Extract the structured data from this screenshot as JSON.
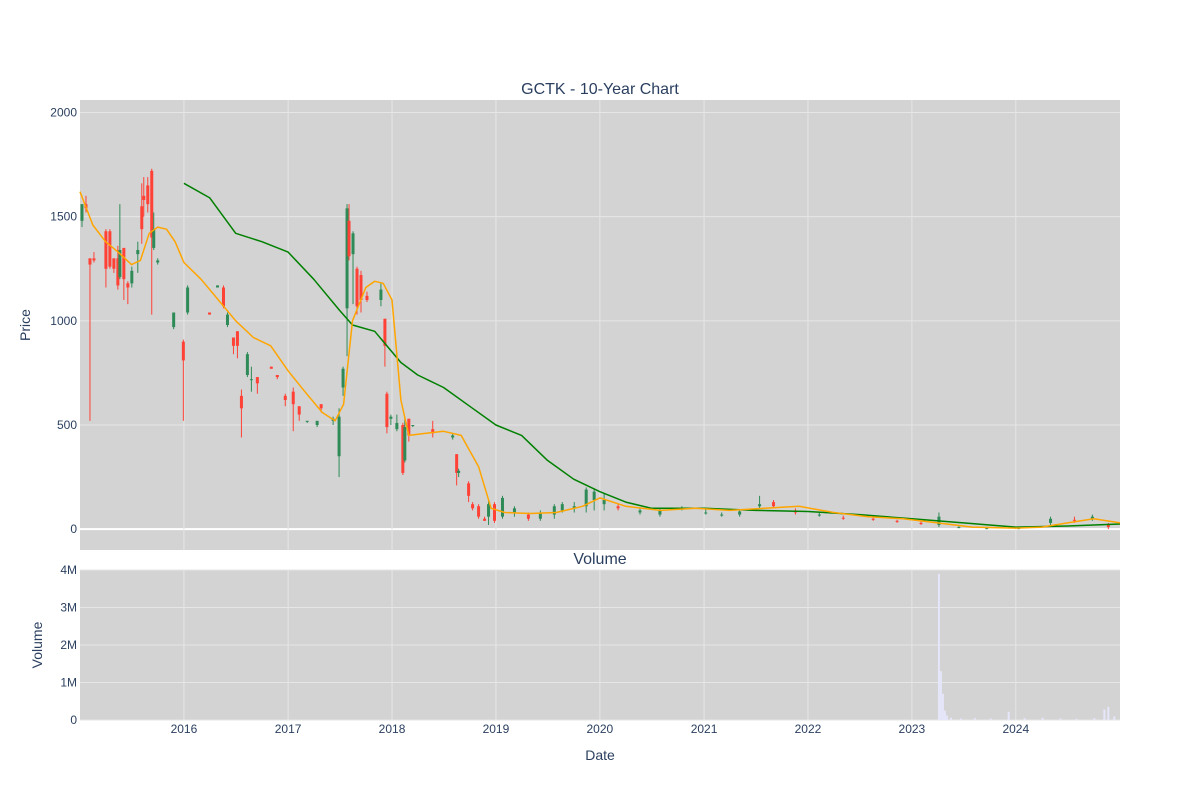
{
  "chart_data": {
    "type": "candlestick",
    "title": "GCTK - 10-Year Chart",
    "price_panel": {
      "ylabel": "Price",
      "ylim": [
        -100,
        2060
      ],
      "yticks": [
        0,
        500,
        1000,
        1500,
        2000
      ],
      "ytick_labels": [
        "0",
        "500",
        "1000",
        "1500",
        "2000"
      ],
      "grid": true,
      "background": "#d3d3d3",
      "colors": {
        "up": "#2e8b57",
        "down": "#ff4136",
        "ma_short": "#ffa500",
        "ma_long": "#008000",
        "grid": "#e6e6e6"
      },
      "candles": [
        [
          "2015-01-08",
          1480,
          1560,
          1450,
          1560
        ],
        [
          "2015-01-22",
          1560,
          1600,
          1520,
          1540
        ],
        [
          "2015-02-05",
          1300,
          1300,
          520,
          1270
        ],
        [
          "2015-02-19",
          1300,
          1330,
          1280,
          1290
        ],
        [
          "2015-04-02",
          1430,
          1440,
          1160,
          1250
        ],
        [
          "2015-04-16",
          1430,
          1440,
          1250,
          1260
        ],
        [
          "2015-04-30",
          1300,
          1300,
          1230,
          1250
        ],
        [
          "2015-05-14",
          1300,
          1360,
          1150,
          1170
        ],
        [
          "2015-05-21",
          1210,
          1560,
          1200,
          1340
        ],
        [
          "2015-06-04",
          1350,
          1350,
          1100,
          1200
        ],
        [
          "2015-06-18",
          1180,
          1190,
          1080,
          1160
        ],
        [
          "2015-07-02",
          1180,
          1260,
          1160,
          1240
        ],
        [
          "2015-07-23",
          1320,
          1380,
          1230,
          1340
        ],
        [
          "2015-08-06",
          1550,
          1660,
          1370,
          1440
        ],
        [
          "2015-08-13",
          1600,
          1690,
          1500,
          1580
        ],
        [
          "2015-08-27",
          1650,
          1690,
          1520,
          1560
        ],
        [
          "2015-09-10",
          1720,
          1730,
          1030,
          1400
        ],
        [
          "2015-09-17",
          1350,
          1520,
          1340,
          1440
        ],
        [
          "2015-10-01",
          1280,
          1300,
          1270,
          1290
        ],
        [
          "2015-11-26",
          970,
          1040,
          960,
          1040
        ],
        [
          "2015-12-30",
          900,
          910,
          520,
          810
        ],
        [
          "2016-01-14",
          1040,
          1170,
          1030,
          1160
        ],
        [
          "2016-03-31",
          1040,
          1040,
          1030,
          1030
        ],
        [
          "2016-04-28",
          1160,
          1170,
          1160,
          1170
        ],
        [
          "2016-05-19",
          1160,
          1170,
          1060,
          1070
        ],
        [
          "2016-06-02",
          980,
          1040,
          970,
          1030
        ],
        [
          "2016-06-23",
          920,
          920,
          840,
          880
        ],
        [
          "2016-07-07",
          950,
          950,
          820,
          880
        ],
        [
          "2016-07-21",
          640,
          670,
          440,
          580
        ],
        [
          "2016-08-11",
          740,
          850,
          730,
          840
        ],
        [
          "2016-08-25",
          720,
          780,
          660,
          720
        ],
        [
          "2016-09-15",
          730,
          730,
          650,
          700
        ],
        [
          "2016-11-03",
          780,
          780,
          770,
          770
        ],
        [
          "2016-11-24",
          740,
          740,
          720,
          730
        ],
        [
          "2016-12-22",
          640,
          650,
          590,
          620
        ],
        [
          "2017-01-19",
          660,
          680,
          470,
          600
        ],
        [
          "2017-02-09",
          590,
          590,
          520,
          550
        ],
        [
          "2017-03-09",
          520,
          520,
          510,
          520
        ],
        [
          "2017-04-13",
          500,
          510,
          490,
          520
        ],
        [
          "2017-04-27",
          600,
          600,
          560,
          580
        ],
        [
          "2017-06-08",
          520,
          540,
          500,
          530
        ],
        [
          "2017-06-29",
          350,
          580,
          250,
          540
        ],
        [
          "2017-07-13",
          680,
          780,
          640,
          770
        ],
        [
          "2017-07-27",
          1060,
          1560,
          830,
          1540
        ],
        [
          "2017-08-03",
          1480,
          1560,
          1290,
          1310
        ],
        [
          "2017-08-17",
          1320,
          1430,
          1080,
          1420
        ],
        [
          "2017-08-31",
          1250,
          1260,
          1030,
          1070
        ],
        [
          "2017-09-14",
          1220,
          1240,
          1040,
          1100
        ],
        [
          "2017-10-05",
          1120,
          1140,
          1090,
          1100
        ],
        [
          "2017-11-23",
          1100,
          1180,
          1070,
          1150
        ],
        [
          "2017-12-07",
          1010,
          1010,
          780,
          880
        ],
        [
          "2017-12-14",
          650,
          660,
          460,
          490
        ],
        [
          "2017-12-28",
          530,
          550,
          500,
          540
        ],
        [
          "2018-01-18",
          480,
          550,
          470,
          510
        ],
        [
          "2018-02-08",
          500,
          510,
          260,
          270
        ],
        [
          "2018-02-15",
          330,
          530,
          320,
          490
        ],
        [
          "2018-03-01",
          530,
          530,
          420,
          450
        ],
        [
          "2018-03-15",
          500,
          500,
          490,
          500
        ],
        [
          "2018-05-24",
          480,
          520,
          440,
          460
        ],
        [
          "2018-08-02",
          440,
          460,
          430,
          450
        ],
        [
          "2018-08-16",
          360,
          360,
          210,
          270
        ],
        [
          "2018-08-23",
          270,
          290,
          250,
          280
        ],
        [
          "2018-09-27",
          220,
          230,
          130,
          160
        ],
        [
          "2018-10-11",
          120,
          130,
          90,
          100
        ],
        [
          "2018-11-01",
          110,
          120,
          50,
          60
        ],
        [
          "2018-11-22",
          50,
          60,
          40,
          40
        ],
        [
          "2018-12-06",
          60,
          140,
          20,
          120
        ],
        [
          "2018-12-27",
          120,
          130,
          30,
          40
        ],
        [
          "2019-01-24",
          60,
          160,
          50,
          150
        ],
        [
          "2019-03-07",
          80,
          110,
          60,
          100
        ],
        [
          "2019-04-25",
          70,
          80,
          40,
          50
        ],
        [
          "2019-06-06",
          50,
          90,
          40,
          80
        ],
        [
          "2019-07-25",
          70,
          120,
          50,
          110
        ],
        [
          "2019-08-22",
          90,
          130,
          80,
          120
        ],
        [
          "2019-10-03",
          100,
          130,
          80,
          110
        ],
        [
          "2019-11-14",
          110,
          200,
          80,
          190
        ],
        [
          "2019-12-12",
          140,
          190,
          90,
          180
        ],
        [
          "2020-01-16",
          120,
          170,
          90,
          140
        ],
        [
          "2020-03-05",
          110,
          120,
          90,
          100
        ],
        [
          "2020-05-21",
          80,
          100,
          70,
          90
        ],
        [
          "2020-07-30",
          70,
          100,
          60,
          90
        ],
        [
          "2020-10-15",
          100,
          110,
          90,
          100
        ],
        [
          "2021-01-07",
          80,
          100,
          70,
          80
        ],
        [
          "2021-03-04",
          70,
          80,
          60,
          70
        ],
        [
          "2021-05-06",
          70,
          90,
          60,
          85
        ],
        [
          "2021-07-15",
          110,
          160,
          100,
          120
        ],
        [
          "2021-09-02",
          130,
          140,
          100,
          110
        ],
        [
          "2021-11-18",
          90,
          100,
          70,
          80
        ],
        [
          "2022-02-10",
          70,
          80,
          60,
          70
        ],
        [
          "2022-05-05",
          55,
          65,
          45,
          50
        ],
        [
          "2022-08-18",
          50,
          55,
          40,
          45
        ],
        [
          "2022-11-10",
          40,
          45,
          30,
          35
        ],
        [
          "2023-02-02",
          30,
          40,
          20,
          25
        ],
        [
          "2023-04-06",
          20,
          80,
          10,
          60
        ],
        [
          "2023-06-15",
          10,
          15,
          5,
          10
        ],
        [
          "2023-09-21",
          5,
          10,
          0,
          5
        ],
        [
          "2024-01-11",
          5,
          10,
          0,
          5
        ],
        [
          "2024-05-02",
          30,
          60,
          20,
          50
        ],
        [
          "2024-07-25",
          45,
          60,
          30,
          40
        ],
        [
          "2024-09-26",
          50,
          70,
          40,
          60
        ],
        [
          "2024-11-21",
          20,
          30,
          0,
          10
        ]
      ],
      "ma_short": {
        "x": [
          "2015-01-01",
          "2015-02-15",
          "2015-04-01",
          "2015-05-15",
          "2015-07-01",
          "2015-08-01",
          "2015-09-01",
          "2015-10-01",
          "2015-11-01",
          "2015-12-01",
          "2016-01-01",
          "2016-03-01",
          "2016-05-01",
          "2016-07-01",
          "2016-09-01",
          "2016-11-01",
          "2017-01-01",
          "2017-03-01",
          "2017-05-01",
          "2017-06-15",
          "2017-07-15",
          "2017-08-15",
          "2017-10-01",
          "2017-11-01",
          "2017-12-01",
          "2018-01-01",
          "2018-02-01",
          "2018-03-01",
          "2018-05-01",
          "2018-07-01",
          "2018-09-01",
          "2018-11-01",
          "2018-12-15",
          "2019-02-01",
          "2019-05-01",
          "2019-08-01",
          "2019-11-01",
          "2020-01-01",
          "2020-04-01",
          "2020-08-01",
          "2020-12-01",
          "2021-04-01",
          "2021-08-01",
          "2021-12-01",
          "2022-04-01",
          "2022-08-01",
          "2022-12-01",
          "2023-04-01",
          "2023-08-01",
          "2024-01-01",
          "2024-04-01",
          "2024-07-01",
          "2024-10-01",
          "2025-01-01"
        ],
        "y": [
          1620,
          1460,
          1380,
          1330,
          1270,
          1290,
          1420,
          1450,
          1440,
          1380,
          1280,
          1200,
          1100,
          1000,
          920,
          880,
          760,
          660,
          560,
          520,
          600,
          1000,
          1160,
          1190,
          1180,
          1100,
          620,
          450,
          460,
          470,
          450,
          300,
          100,
          80,
          75,
          80,
          110,
          150,
          110,
          90,
          100,
          90,
          100,
          110,
          80,
          60,
          50,
          30,
          10,
          5,
          10,
          30,
          50,
          30
        ]
      },
      "ma_long": {
        "x": [
          "2016-01-01",
          "2016-04-01",
          "2016-07-01",
          "2016-10-01",
          "2017-01-01",
          "2017-04-01",
          "2017-07-01",
          "2017-08-15",
          "2017-11-01",
          "2018-02-01",
          "2018-04-01",
          "2018-07-01",
          "2018-10-01",
          "2019-01-01",
          "2019-04-01",
          "2019-07-01",
          "2019-10-01",
          "2020-01-01",
          "2020-04-01",
          "2020-07-01",
          "2021-01-01",
          "2021-07-01",
          "2022-01-01",
          "2022-07-01",
          "2023-01-01",
          "2023-07-01",
          "2024-01-01",
          "2024-07-01",
          "2025-01-01"
        ],
        "y": [
          1660,
          1590,
          1420,
          1380,
          1330,
          1200,
          1050,
          980,
          950,
          800,
          740,
          680,
          590,
          500,
          450,
          330,
          240,
          180,
          130,
          100,
          100,
          90,
          85,
          70,
          50,
          30,
          10,
          15,
          25
        ]
      }
    },
    "volume_panel": {
      "title": "Volume",
      "ylabel": "Volume",
      "ylim": [
        0,
        4000000
      ],
      "yticks": [
        0,
        1000000,
        2000000,
        3000000,
        4000000
      ],
      "ytick_labels": [
        "0",
        "1M",
        "2M",
        "3M",
        "4M"
      ],
      "bar_color": "#e6e6fa",
      "bars": [
        [
          "2023-04-06",
          3900000
        ],
        [
          "2023-04-13",
          1300000
        ],
        [
          "2023-04-20",
          700000
        ],
        [
          "2023-04-27",
          250000
        ],
        [
          "2023-05-04",
          120000
        ],
        [
          "2023-05-18",
          60000
        ],
        [
          "2023-06-22",
          40000
        ],
        [
          "2023-08-10",
          50000
        ],
        [
          "2023-10-05",
          40000
        ],
        [
          "2023-12-07",
          220000
        ],
        [
          "2024-02-01",
          50000
        ],
        [
          "2024-04-04",
          60000
        ],
        [
          "2024-06-06",
          40000
        ],
        [
          "2024-08-01",
          30000
        ],
        [
          "2024-10-03",
          50000
        ],
        [
          "2024-11-07",
          280000
        ],
        [
          "2024-11-21",
          350000
        ],
        [
          "2024-12-12",
          100000
        ]
      ]
    },
    "xaxis": {
      "xlabel": "Date",
      "range": [
        "2015-01-01",
        "2025-01-01"
      ],
      "tick_labels": [
        "2016",
        "2017",
        "2018",
        "2019",
        "2020",
        "2021",
        "2022",
        "2023",
        "2024"
      ]
    }
  }
}
